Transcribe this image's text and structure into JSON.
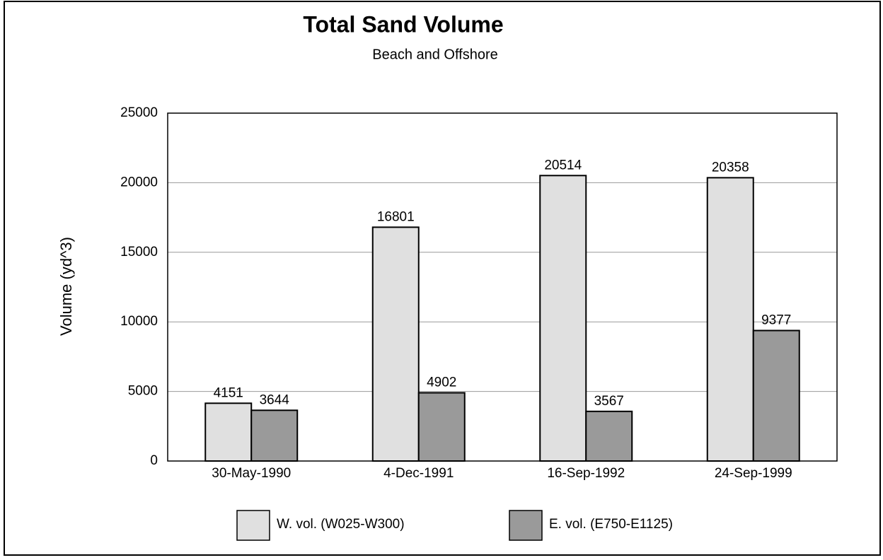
{
  "chart_data": {
    "type": "bar",
    "title": "Total Sand Volume",
    "subtitle": "Beach and Offshore",
    "y_label": "Volume (yd^3)",
    "categories": [
      "30-May-1990",
      "4-Dec-1991",
      "16-Sep-1992",
      "24-Sep-1999"
    ],
    "series": [
      {
        "name": "W. vol. (W025-W300)",
        "color": "#e0e0e0",
        "values": [
          4151,
          16801,
          20514,
          20358
        ]
      },
      {
        "name": "E. vol. (E750-E1125)",
        "color": "#9a9a9a",
        "values": [
          3644,
          4902,
          3567,
          9377
        ]
      }
    ],
    "ylim": [
      0,
      25000
    ],
    "yticks": [
      0,
      5000,
      10000,
      15000,
      20000,
      25000
    ],
    "grid": true
  }
}
